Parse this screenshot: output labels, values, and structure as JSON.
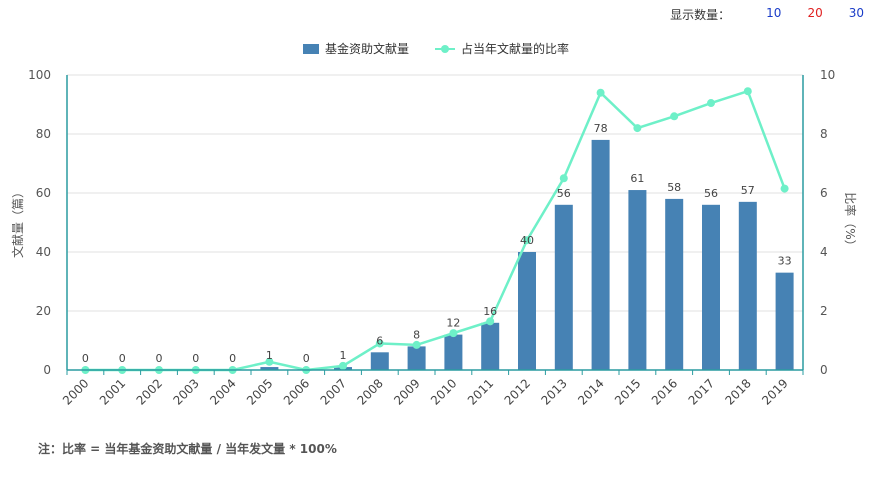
{
  "controls": {
    "label": "显示数量：",
    "options": [
      {
        "label": "10",
        "color": "#1a3cc8"
      },
      {
        "label": "20",
        "color": "#e02020"
      },
      {
        "label": "30",
        "color": "#1a3cc8"
      }
    ]
  },
  "note": "注：比率 = 当年基金资助文献量 / 当年发文量 * 100%",
  "colors": {
    "bar": "#4682b4",
    "line": "#6ef0c8",
    "axis": "#2a9ca0",
    "grid": "#e0e0e0"
  },
  "chart_data": {
    "type": "bar",
    "categories": [
      "2000",
      "2001",
      "2002",
      "2003",
      "2004",
      "2005",
      "2006",
      "2007",
      "2008",
      "2009",
      "2010",
      "2011",
      "2012",
      "2013",
      "2014",
      "2015",
      "2016",
      "2017",
      "2018",
      "2019"
    ],
    "series": [
      {
        "name": "基金资助文献量",
        "type": "bar",
        "axis": "left",
        "values": [
          0,
          0,
          0,
          0,
          0,
          1,
          0,
          1,
          6,
          8,
          12,
          16,
          40,
          56,
          78,
          61,
          58,
          56,
          57,
          33
        ]
      },
      {
        "name": "占当年文献量的比率",
        "type": "line",
        "axis": "right",
        "values": [
          0,
          0,
          0,
          0,
          0,
          0.28,
          0,
          0.14,
          0.9,
          0.85,
          1.25,
          1.65,
          4.4,
          6.5,
          9.4,
          8.2,
          8.6,
          9.05,
          9.45,
          6.15
        ]
      }
    ],
    "ylabel": "文献量（篇）",
    "y2label": "比率（%）",
    "ylim": [
      0,
      100
    ],
    "y2lim": [
      0,
      10
    ],
    "yticks": [
      0,
      20,
      40,
      60,
      80,
      100
    ],
    "y2ticks": [
      0,
      2,
      4,
      6,
      8,
      10
    ],
    "grid": true,
    "legend": "top-center"
  }
}
